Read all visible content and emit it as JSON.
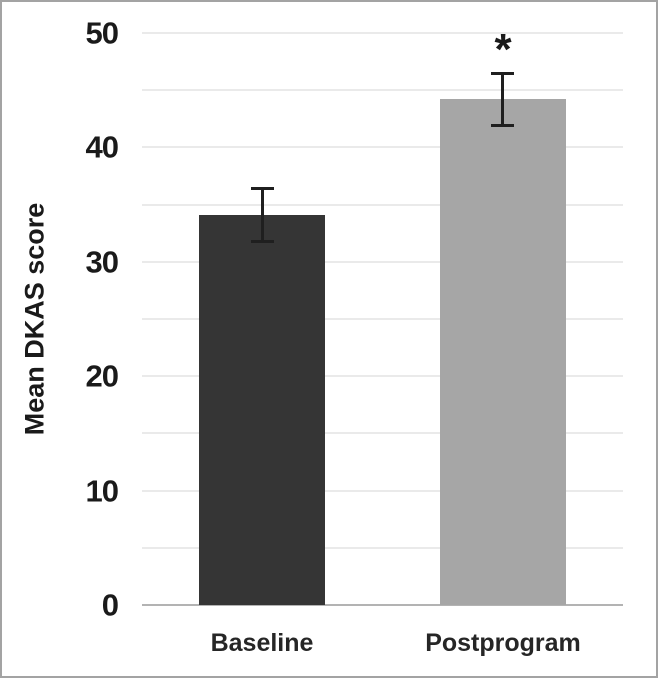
{
  "chart_data": {
    "type": "bar",
    "title": "",
    "ylabel": "Mean DKAS score",
    "xlabel": "",
    "categories": [
      "Baseline",
      "Postprogram"
    ],
    "values": [
      34.1,
      44.2
    ],
    "error_bars": [
      2.3,
      2.3
    ],
    "bar_colors": [
      "#353535",
      "#a6a6a6"
    ],
    "annotations": [
      {
        "category": "Postprogram",
        "text": "*",
        "meaning": "significant difference marker"
      }
    ],
    "ylim": [
      0,
      50
    ],
    "yticks": [
      0,
      10,
      20,
      30,
      40,
      50
    ],
    "grid_step": 5,
    "grid": true,
    "legend_position": "none",
    "colors": {
      "gridline": "#eaeaea",
      "zero_line": "#b3b3b3",
      "error_bar": "#1f1f1f",
      "text": "#1a1a1a",
      "frame_border": "#a3a3a3",
      "background": "#ffffff"
    }
  }
}
